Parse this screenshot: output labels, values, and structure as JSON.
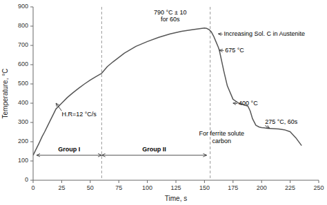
{
  "chart_data": {
    "type": "line",
    "xlabel": "Time, s",
    "ylabel": "Temperature, °C",
    "xlim": [
      0,
      250
    ],
    "ylim": [
      0,
      900
    ],
    "xticks": [
      0,
      25,
      50,
      75,
      100,
      125,
      150,
      175,
      200,
      225,
      250
    ],
    "yticks": [
      0,
      100,
      200,
      300,
      400,
      500,
      600,
      700,
      800,
      900
    ],
    "grid": false,
    "x": [
      0,
      2,
      5,
      8,
      10,
      13,
      15,
      18,
      20,
      25,
      30,
      35,
      40,
      45,
      50,
      55,
      60,
      65,
      70,
      80,
      90,
      100,
      110,
      120,
      130,
      140,
      150,
      152,
      154,
      156,
      158,
      160,
      162,
      163,
      165,
      167,
      170,
      175,
      180,
      185,
      188,
      190,
      192,
      195,
      198,
      200,
      202,
      205,
      210,
      215,
      220,
      225,
      230,
      235
    ],
    "values": [
      130,
      154,
      190,
      228,
      250,
      286,
      310,
      346,
      370,
      400,
      430,
      455,
      478,
      500,
      520,
      538,
      555,
      590,
      615,
      660,
      695,
      720,
      742,
      760,
      773,
      782,
      790,
      788,
      782,
      770,
      748,
      720,
      692,
      675,
      620,
      565,
      490,
      420,
      400,
      390,
      385,
      360,
      320,
      285,
      276,
      273,
      272,
      270,
      268,
      266,
      262,
      252,
      220,
      180
    ],
    "color": "#555555",
    "vlines": [
      60,
      155
    ],
    "annotations": [
      {
        "text": "790 °C ± 10\nfor 60s",
        "x": 120,
        "y": 815
      },
      {
        "text": "H.R=12 °C/s",
        "x": 20,
        "y": 400,
        "text_x": 25,
        "text_y": 360
      },
      {
        "text": "Increasing Sol. C in Austenite",
        "x": 162,
        "y": 760,
        "text_x": 167,
        "text_y": 758
      },
      {
        "text": "675 °C",
        "x": 163,
        "y": 675,
        "text_x": 168,
        "text_y": 673
      },
      {
        "text": "400 °C",
        "x": 175,
        "y": 400,
        "text_x": 180,
        "text_y": 398
      },
      {
        "text": "275 °C, 60s",
        "x": 207,
        "y": 270,
        "text_x": 203,
        "text_y": 284
      },
      {
        "text": "For ferrite solute\ncarbon",
        "x": 165,
        "y": 185
      },
      {
        "text": "Group I",
        "x": 3,
        "x2": 60,
        "y": 130
      },
      {
        "text": "Group II",
        "x": 60,
        "x2": 152,
        "y": 130
      }
    ]
  }
}
